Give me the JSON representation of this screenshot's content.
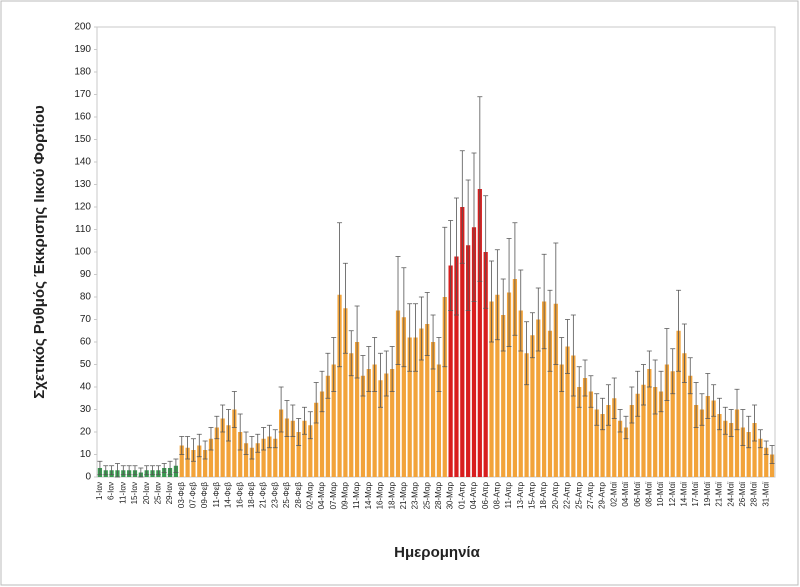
{
  "chart_data": {
    "type": "bar",
    "ylabel": "Σχετικός Ρυθμός Έκκρισης Ιικού Φορτίου",
    "xlabel": "Ημερομηνία",
    "categories": [
      "1-Ιαν",
      null,
      "6-Ιαν",
      null,
      "11-Ιαν",
      null,
      "15-Ιαν",
      null,
      "20-Ιαν",
      null,
      "25-Ιαν",
      null,
      "29-Ιαν",
      null,
      "03-Φεβ",
      null,
      "07-Φεβ",
      null,
      "09-Φεβ",
      null,
      "11-Φεβ",
      null,
      "14-Φεβ",
      null,
      "16-Φεβ",
      null,
      "18-Φεβ",
      null,
      "21-Φεβ",
      null,
      "23-Φεβ",
      null,
      "25-Φεβ",
      null,
      "28-Φεβ",
      null,
      "02-Μαρ",
      null,
      "04-Μαρ",
      null,
      "07-Μαρ",
      null,
      "09-Μαρ",
      null,
      "11-Μαρ",
      null,
      "14-Μαρ",
      null,
      "16-Μαρ",
      null,
      "18-Μαρ",
      null,
      "21-Μαρ",
      null,
      "23-Μαρ",
      null,
      "25-Μαρ",
      null,
      "28-Μαρ",
      null,
      "30-Μαρ",
      null,
      "01-Απρ",
      null,
      "04-Απρ",
      null,
      "06-Απρ",
      null,
      "08-Απρ",
      null,
      "11-Απρ",
      null,
      "13-Απρ",
      null,
      "15-Απρ",
      null,
      "18-Απρ",
      null,
      "20-Απρ",
      null,
      "22-Απρ",
      null,
      "25-Απρ",
      null,
      "27-Απρ",
      null,
      "29-Απρ",
      null,
      "02-Μαϊ",
      null,
      "04-Μαϊ",
      null,
      "06-Μαϊ",
      null,
      "08-Μαϊ",
      null,
      "10-Μαϊ",
      null,
      "12-Μαϊ",
      null,
      "14-Μαϊ",
      null,
      "17-Μαϊ",
      null,
      "19-Μαϊ",
      null,
      "21-Μαϊ",
      null,
      "24-Μαϊ",
      null,
      "26-Μαϊ",
      null,
      "28-Μαϊ",
      null,
      "31-Μαϊ",
      null
    ],
    "values": [
      4,
      3,
      3,
      3,
      3,
      3,
      3,
      2,
      3,
      3,
      3,
      4,
      4,
      5,
      14,
      13,
      12,
      14,
      12,
      17,
      22,
      26,
      23,
      30,
      20,
      15,
      13,
      15,
      17,
      18,
      17,
      30,
      26,
      25,
      20,
      25,
      23,
      33,
      38,
      45,
      50,
      81,
      75,
      55,
      60,
      45,
      48,
      50,
      43,
      46,
      48,
      74,
      71,
      62,
      62,
      66,
      68,
      60,
      50,
      80,
      94,
      98,
      120,
      103,
      111,
      128,
      100,
      78,
      81,
      72,
      82,
      88,
      74,
      55,
      63,
      70,
      78,
      65,
      77,
      50,
      58,
      54,
      40,
      44,
      38,
      30,
      28,
      32,
      35,
      25,
      22,
      32,
      37,
      41,
      48,
      40,
      38,
      50,
      47,
      65,
      55,
      45,
      32,
      30,
      36,
      34,
      28,
      25,
      24,
      30,
      22,
      20,
      24,
      17,
      13,
      10
    ],
    "errors": [
      3,
      2,
      2,
      3,
      2,
      2,
      2,
      2,
      2,
      2,
      2,
      2,
      3,
      3,
      4,
      5,
      5,
      5,
      4,
      5,
      5,
      6,
      7,
      8,
      8,
      5,
      5,
      4,
      5,
      5,
      4,
      10,
      8,
      7,
      6,
      6,
      6,
      9,
      9,
      10,
      12,
      32,
      20,
      10,
      16,
      9,
      10,
      12,
      12,
      10,
      10,
      24,
      22,
      15,
      15,
      14,
      14,
      12,
      12,
      31,
      20,
      26,
      25,
      29,
      33,
      41,
      25,
      18,
      20,
      16,
      24,
      25,
      18,
      14,
      10,
      14,
      21,
      18,
      27,
      12,
      12,
      18,
      9,
      8,
      7,
      7,
      7,
      9,
      9,
      5,
      5,
      8,
      10,
      9,
      8,
      12,
      9,
      16,
      10,
      18,
      13,
      8,
      10,
      7,
      10,
      7,
      7,
      6,
      6,
      9,
      8,
      7,
      8,
      4,
      3,
      4
    ],
    "colors": [
      "#3a9a50",
      "#3a9a50",
      "#3a9a50",
      "#3a9a50",
      "#3a9a50",
      "#3a9a50",
      "#3a9a50",
      "#3a9a50",
      "#3a9a50",
      "#3a9a50",
      "#3a9a50",
      "#3a9a50",
      "#3a9a50",
      "#3a9a50",
      "#f2a33a",
      "#f2a33a",
      "#f2a33a",
      "#f2a33a",
      "#f2a33a",
      "#f2a33a",
      "#f2a33a",
      "#f2a33a",
      "#f2a33a",
      "#f2a33a",
      "#f2a33a",
      "#f2a33a",
      "#f2a33a",
      "#f2a33a",
      "#f2a33a",
      "#f2a33a",
      "#f2a33a",
      "#f2a33a",
      "#f2a33a",
      "#f2a33a",
      "#f2a33a",
      "#f2a33a",
      "#f2a33a",
      "#f2a33a",
      "#f2a33a",
      "#f2a33a",
      "#f2a33a",
      "#f2a33a",
      "#f2a33a",
      "#f2a33a",
      "#f2a33a",
      "#f2a33a",
      "#f2a33a",
      "#f2a33a",
      "#f2a33a",
      "#f2a33a",
      "#f2a33a",
      "#f2a33a",
      "#f2a33a",
      "#f2a33a",
      "#f2a33a",
      "#f2a33a",
      "#f2a33a",
      "#f2a33a",
      "#f2a33a",
      "#f2a33a",
      "#d81e1e",
      "#d81e1e",
      "#d81e1e",
      "#d81e1e",
      "#d81e1e",
      "#d81e1e",
      "#d81e1e",
      "#f2a33a",
      "#f2a33a",
      "#f2a33a",
      "#f2a33a",
      "#f2a33a",
      "#f2a33a",
      "#f2a33a",
      "#f2a33a",
      "#f2a33a",
      "#f2a33a",
      "#f2a33a",
      "#f2a33a",
      "#f2a33a",
      "#f2a33a",
      "#f2a33a",
      "#f2a33a",
      "#f2a33a",
      "#f2a33a",
      "#f2a33a",
      "#f2a33a",
      "#f2a33a",
      "#f2a33a",
      "#f2a33a",
      "#f2a33a",
      "#f2a33a",
      "#f2a33a",
      "#f2a33a",
      "#f2a33a",
      "#f2a33a",
      "#f2a33a",
      "#f2a33a",
      "#f2a33a",
      "#f2a33a",
      "#f2a33a",
      "#f2a33a",
      "#f2a33a",
      "#f2a33a",
      "#f2a33a",
      "#f2a33a",
      "#f2a33a",
      "#f2a33a",
      "#f2a33a",
      "#f2a33a",
      "#f2a33a",
      "#f2a33a",
      "#f2a33a",
      "#f2a33a",
      "#f2a33a",
      "#f2a33a"
    ],
    "error_color": "#555555",
    "ylim": [
      0,
      200
    ],
    "yticks": [
      0,
      10,
      20,
      30,
      40,
      50,
      60,
      70,
      80,
      90,
      100,
      110,
      120,
      130,
      140,
      150,
      160,
      170,
      180,
      190,
      200
    ],
    "grid": false
  }
}
